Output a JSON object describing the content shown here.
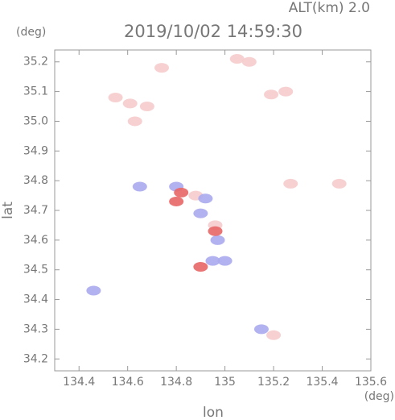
{
  "chart_data": {
    "type": "scatter",
    "title": "2019/10/02 14:59:30",
    "subtitle": "ALT(km) 2.0",
    "y_unit": "(deg)",
    "x_unit": "(deg)",
    "x_label": "lon",
    "y_label": "lat",
    "xlim": [
      134.3,
      135.6
    ],
    "ylim": [
      34.16,
      35.24
    ],
    "xticks": [
      134.4,
      134.6,
      134.8,
      135,
      135.2,
      135.4,
      135.6
    ],
    "yticks": [
      34.2,
      34.3,
      34.4,
      34.5,
      34.6,
      34.7,
      34.8,
      34.9,
      {
        "value": 35,
        "label": "35.0"
      },
      35.1,
      35.2
    ],
    "series": [
      {
        "color": "#f6cccc",
        "x": [
          135.19,
          135.25,
          135.05,
          135.1,
          134.55,
          134.61,
          134.68,
          134.74,
          134.63,
          135.47,
          135.27,
          134.88,
          134.96,
          135.2
        ],
        "y": [
          35.09,
          35.1,
          35.21,
          35.2,
          35.08,
          35.06,
          35.05,
          35.18,
          35.0,
          34.79,
          34.79,
          34.75,
          34.65,
          34.28
        ]
      },
      {
        "color": "#aaaaee",
        "x": [
          134.65,
          134.8,
          134.92,
          134.9,
          134.95,
          135.0,
          134.46,
          135.15,
          134.97
        ],
        "y": [
          34.78,
          34.78,
          34.74,
          34.69,
          34.53,
          34.53,
          34.43,
          34.3,
          34.6
        ]
      },
      {
        "color": "#e86666",
        "x": [
          134.8,
          134.96,
          134.9,
          134.82
        ],
        "y": [
          34.73,
          34.63,
          34.51,
          34.76
        ]
      }
    ]
  }
}
